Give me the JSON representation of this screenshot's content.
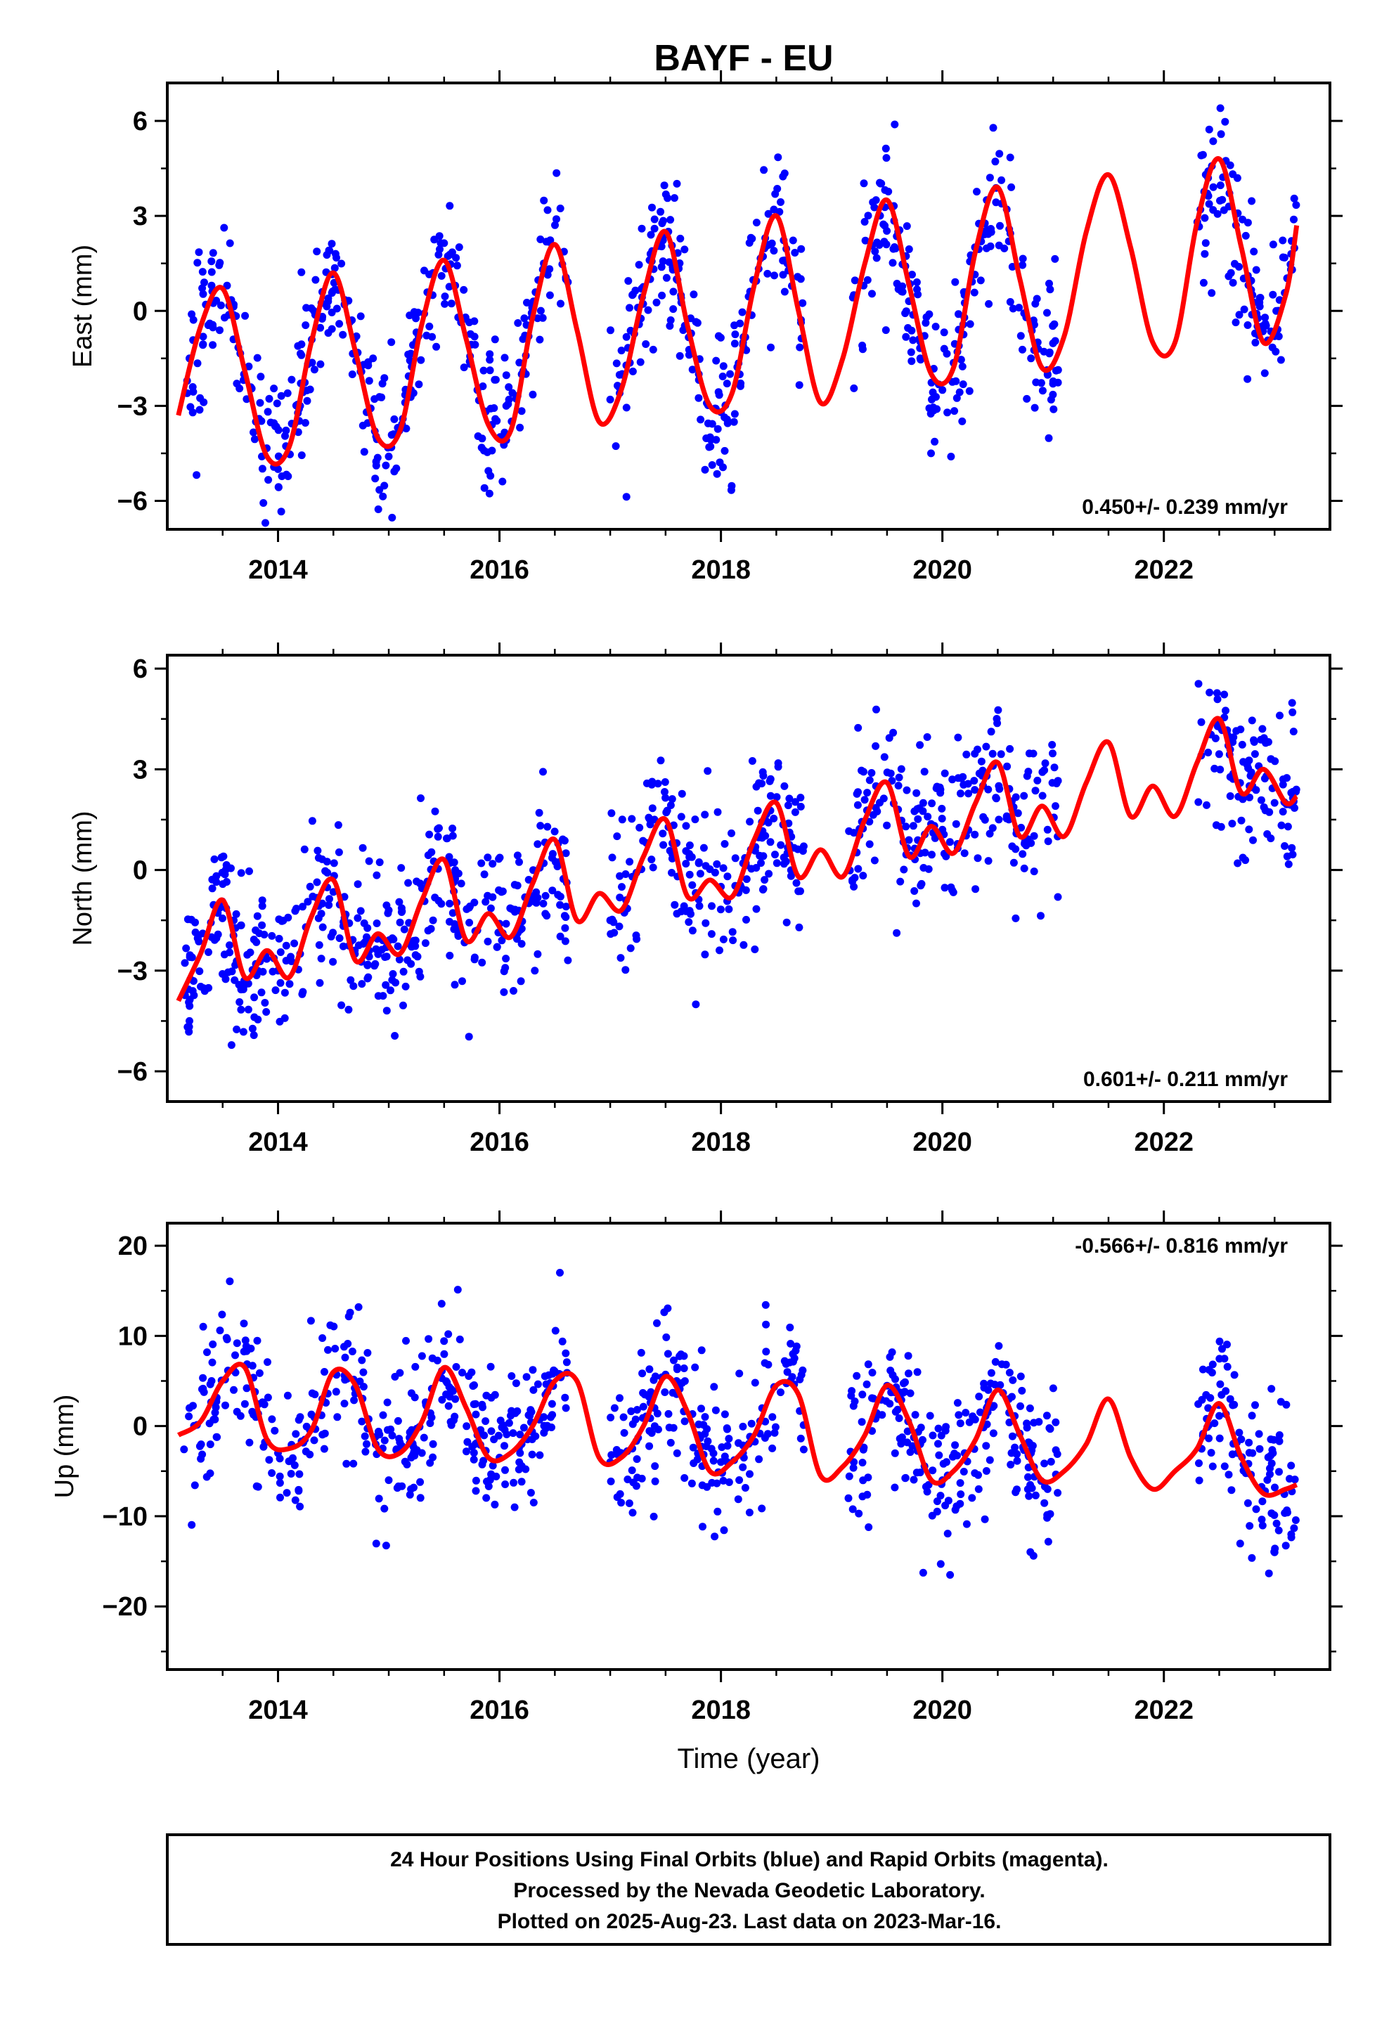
{
  "title": "BAYF - EU",
  "footer": {
    "lines": [
      "24 Hour Positions Using Final Orbits (blue) and Rapid Orbits (magenta).",
      "Processed by the Nevada Geodetic Laboratory.",
      "Plotted on 2025-Aug-23. Last data on 2023-Mar-16."
    ]
  },
  "colors": {
    "points": "#0000ff",
    "model": "#ff0000",
    "frame": "#000000"
  },
  "chart_data": [
    {
      "type": "scatter",
      "ylabel": "East (mm)",
      "xlabel": "",
      "xlim": [
        2013.0,
        2023.5
      ],
      "ylim": [
        -6.9,
        7.2
      ],
      "yticks": [
        -6,
        -3,
        0,
        3,
        6
      ],
      "ytick_labels": [
        "−6",
        "−3",
        "0",
        "3",
        "6"
      ],
      "xticks": [
        2014,
        2016,
        2018,
        2020,
        2022
      ],
      "rate_label": "0.450+/- 0.239 mm/yr",
      "rate_position": "bottom-right",
      "model": {
        "x": [
          2013.1,
          2013.3,
          2013.5,
          2013.7,
          2013.9,
          2014.1,
          2014.3,
          2014.5,
          2014.7,
          2014.9,
          2015.1,
          2015.3,
          2015.5,
          2015.7,
          2015.9,
          2016.1,
          2016.3,
          2016.5,
          2016.7,
          2016.9,
          2017.1,
          2017.3,
          2017.5,
          2017.7,
          2017.9,
          2018.1,
          2018.3,
          2018.5,
          2018.7,
          2018.9,
          2019.1,
          2019.3,
          2019.5,
          2019.7,
          2019.9,
          2020.1,
          2020.3,
          2020.5,
          2020.7,
          2020.9,
          2021.1,
          2021.3,
          2021.5,
          2021.7,
          2021.9,
          2022.1,
          2022.3,
          2022.5,
          2022.7,
          2022.9,
          2023.1,
          2023.2
        ],
        "y": [
          -3.3,
          -0.5,
          0.7,
          -1.9,
          -4.6,
          -4.3,
          -1.0,
          1.2,
          -1.3,
          -4.0,
          -3.8,
          -0.4,
          1.6,
          -0.9,
          -3.6,
          -3.8,
          -0.2,
          2.1,
          -0.6,
          -3.5,
          -2.5,
          0.5,
          2.5,
          -0.5,
          -3.0,
          -2.6,
          0.8,
          3.0,
          0.0,
          -2.9,
          -1.5,
          1.5,
          3.5,
          0.8,
          -2.0,
          -1.8,
          1.9,
          3.9,
          1.0,
          -1.8,
          -0.8,
          2.5,
          4.3,
          2.0,
          -1.0,
          -1.0,
          2.8,
          4.8,
          2.0,
          -1.0,
          0.5,
          2.7
        ]
      },
      "scatter_samples": {
        "x": [
          2013.2,
          2013.4,
          2013.6,
          2013.8,
          2014.0,
          2014.2,
          2014.4,
          2014.6,
          2014.8,
          2015.0,
          2015.2,
          2015.4,
          2015.6,
          2015.8,
          2016.0,
          2016.2,
          2016.4,
          2016.6,
          2017.0,
          2017.2,
          2017.4,
          2017.6,
          2017.8,
          2018.0,
          2018.2,
          2018.4,
          2018.6,
          2019.2,
          2019.4,
          2019.6,
          2019.8,
          2020.0,
          2020.2,
          2020.4,
          2020.6,
          2020.8,
          2020.95,
          2022.4,
          2022.6,
          2022.8,
          2023.0,
          2023.15
        ],
        "y": [
          -1.5,
          0.8,
          0.2,
          -3.5,
          -5.0,
          -3.0,
          0.6,
          0.2,
          -3.2,
          -4.6,
          -2.5,
          1.2,
          0.8,
          -2.5,
          -4.0,
          -2.0,
          1.5,
          1.0,
          -2.8,
          0.5,
          2.6,
          1.0,
          -2.0,
          -3.2,
          -1.0,
          2.3,
          1.5,
          0.5,
          3.5,
          2.5,
          -1.5,
          -2.5,
          0.5,
          3.5,
          2.2,
          -1.5,
          -2.0,
          4.2,
          4.6,
          0.5,
          -0.8,
          1.8
        ]
      }
    },
    {
      "type": "scatter",
      "ylabel": "North (mm)",
      "xlabel": "",
      "xlim": [
        2013.0,
        2023.5
      ],
      "ylim": [
        -6.9,
        6.4
      ],
      "yticks": [
        -6,
        -3,
        0,
        3,
        6
      ],
      "ytick_labels": [
        "−6",
        "−3",
        "0",
        "3",
        "6"
      ],
      "xticks": [
        2014,
        2016,
        2018,
        2020,
        2022
      ],
      "rate_label": "0.601+/- 0.211 mm/yr",
      "rate_position": "bottom-right",
      "model": {
        "x": [
          2013.1,
          2013.3,
          2013.5,
          2013.7,
          2013.9,
          2014.1,
          2014.3,
          2014.5,
          2014.7,
          2014.9,
          2015.1,
          2015.3,
          2015.5,
          2015.7,
          2015.9,
          2016.1,
          2016.3,
          2016.5,
          2016.7,
          2016.9,
          2017.1,
          2017.3,
          2017.5,
          2017.7,
          2017.9,
          2018.1,
          2018.3,
          2018.5,
          2018.7,
          2018.9,
          2019.1,
          2019.3,
          2019.5,
          2019.7,
          2019.9,
          2020.1,
          2020.3,
          2020.5,
          2020.7,
          2020.9,
          2021.1,
          2021.3,
          2021.5,
          2021.7,
          2021.9,
          2022.1,
          2022.3,
          2022.5,
          2022.7,
          2022.9,
          2023.1,
          2023.2
        ],
        "y": [
          -3.9,
          -2.5,
          -0.9,
          -3.2,
          -2.4,
          -3.2,
          -1.4,
          -0.3,
          -2.7,
          -1.9,
          -2.5,
          -0.9,
          0.3,
          -2.1,
          -1.3,
          -2.0,
          -0.4,
          0.9,
          -1.5,
          -0.7,
          -1.2,
          0.4,
          1.5,
          -0.8,
          -0.3,
          -0.8,
          0.9,
          2.0,
          -0.2,
          0.6,
          -0.2,
          1.5,
          2.6,
          0.4,
          1.3,
          0.5,
          2.0,
          3.2,
          1.0,
          1.9,
          1.0,
          2.6,
          3.8,
          1.6,
          2.5,
          1.6,
          3.2,
          4.5,
          2.3,
          3.0,
          2.0,
          2.2
        ]
      },
      "scatter_samples": {
        "x": [
          2013.2,
          2013.4,
          2013.6,
          2013.8,
          2014.0,
          2014.2,
          2014.4,
          2014.6,
          2014.8,
          2015.0,
          2015.2,
          2015.4,
          2015.6,
          2015.8,
          2016.0,
          2016.2,
          2016.4,
          2016.6,
          2017.0,
          2017.2,
          2017.4,
          2017.6,
          2017.8,
          2018.0,
          2018.2,
          2018.4,
          2018.6,
          2019.2,
          2019.4,
          2019.6,
          2019.8,
          2020.0,
          2020.2,
          2020.4,
          2020.6,
          2020.8,
          2020.95,
          2022.4,
          2022.6,
          2022.8,
          2023.0,
          2023.15
        ],
        "y": [
          -4.5,
          -2.0,
          -1.5,
          -2.8,
          -3.0,
          -2.5,
          -1.0,
          -0.8,
          -2.0,
          -1.2,
          -2.8,
          -1.5,
          0.0,
          -1.8,
          -1.6,
          -2.2,
          0.2,
          0.5,
          -1.5,
          -0.2,
          1.5,
          0.8,
          0.2,
          -0.5,
          0.2,
          1.5,
          0.5,
          -0.5,
          2.5,
          1.8,
          0.5,
          1.2,
          0.5,
          2.8,
          1.5,
          0.8,
          1.2,
          3.5,
          2.2,
          2.5,
          2.0,
          2.3
        ]
      }
    },
    {
      "type": "scatter",
      "ylabel": "Up (mm)",
      "xlabel": "Time (year)",
      "xlim": [
        2013.0,
        2023.5
      ],
      "ylim": [
        -27,
        22.5
      ],
      "yticks": [
        -20,
        -10,
        0,
        10,
        20
      ],
      "ytick_labels": [
        "−20",
        "−10",
        "0",
        "10",
        "20"
      ],
      "xticks": [
        2014,
        2016,
        2018,
        2020,
        2022
      ],
      "rate_label": "-0.566+/- 0.816 mm/yr",
      "rate_position": "top-right",
      "model": {
        "x": [
          2013.1,
          2013.3,
          2013.5,
          2013.7,
          2013.9,
          2014.1,
          2014.3,
          2014.5,
          2014.7,
          2014.9,
          2015.1,
          2015.3,
          2015.5,
          2015.7,
          2015.9,
          2016.1,
          2016.3,
          2016.5,
          2016.7,
          2016.9,
          2017.1,
          2017.3,
          2017.5,
          2017.7,
          2017.9,
          2018.1,
          2018.3,
          2018.5,
          2018.7,
          2018.9,
          2019.1,
          2019.3,
          2019.5,
          2019.7,
          2019.9,
          2020.1,
          2020.3,
          2020.5,
          2020.7,
          2020.9,
          2021.1,
          2021.3,
          2021.5,
          2021.7,
          2021.9,
          2022.1,
          2022.3,
          2022.5,
          2022.7,
          2022.9,
          2023.1,
          2023.2
        ],
        "y": [
          -1.0,
          0.5,
          5.0,
          6.5,
          -1.5,
          -2.5,
          -0.5,
          6.0,
          4.5,
          -2.5,
          -3.0,
          0.5,
          6.5,
          2.0,
          -3.5,
          -3.0,
          0.0,
          5.0,
          5.0,
          -3.5,
          -3.5,
          0.0,
          5.5,
          1.5,
          -5.0,
          -4.0,
          -1.0,
          4.5,
          3.5,
          -5.5,
          -4.5,
          -1.0,
          4.5,
          0.5,
          -6.0,
          -5.0,
          -1.5,
          4.0,
          -1.0,
          -6.0,
          -5.0,
          -2.0,
          3.0,
          -3.5,
          -7.0,
          -5.0,
          -2.5,
          2.5,
          -3.5,
          -7.5,
          -7.0,
          -6.5
        ]
      },
      "scatter_samples": {
        "x": [
          2013.2,
          2013.4,
          2013.6,
          2013.8,
          2014.0,
          2014.2,
          2014.4,
          2014.6,
          2014.8,
          2015.0,
          2015.2,
          2015.4,
          2015.6,
          2015.8,
          2016.0,
          2016.2,
          2016.4,
          2016.6,
          2017.0,
          2017.2,
          2017.4,
          2017.6,
          2017.8,
          2018.0,
          2018.2,
          2018.4,
          2018.6,
          2019.2,
          2019.4,
          2019.6,
          2019.8,
          2020.0,
          2020.2,
          2020.4,
          2020.6,
          2020.8,
          2020.95,
          2022.4,
          2022.6,
          2022.8,
          2023.0,
          2023.15
        ],
        "y": [
          2.0,
          5.0,
          4.0,
          1.0,
          -3.0,
          1.0,
          3.0,
          2.5,
          -2.0,
          -6.0,
          -7.0,
          -2.0,
          3.0,
          -1.0,
          -3.5,
          -2.0,
          1.0,
          2.0,
          -4.0,
          -2.5,
          2.0,
          5.0,
          -1.0,
          -4.0,
          -3.0,
          0.5,
          6.0,
          -4.0,
          1.0,
          3.0,
          -2.0,
          -6.0,
          -3.0,
          2.0,
          3.0,
          -3.0,
          -7.0,
          2.0,
          3.0,
          -3.0,
          -14.0,
          -12.0
        ]
      }
    }
  ]
}
